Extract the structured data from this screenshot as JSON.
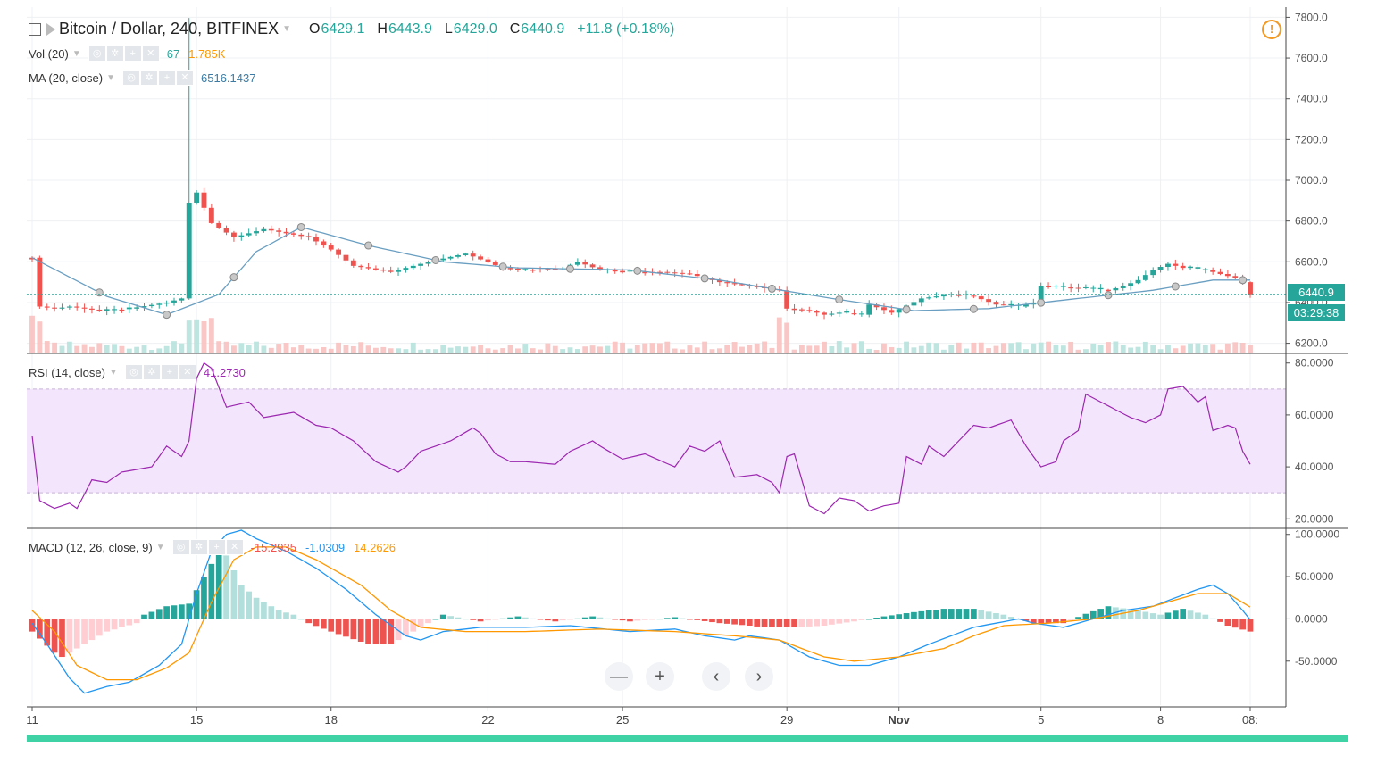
{
  "header": {
    "symbol": "Bitcoin / Dollar, 240, BITFINEX",
    "open_label": "O",
    "open": "6429.1",
    "high_label": "H",
    "high": "6443.9",
    "low_label": "L",
    "low": "6429.0",
    "close_label": "C",
    "close": "6440.9",
    "change": "+11.8 (+0.18%)"
  },
  "indicators": {
    "vol": {
      "label": "Vol (20)",
      "value1": "67",
      "value2": "1.785K"
    },
    "ma": {
      "label": "MA (20, close)",
      "value": "6516.1437"
    },
    "rsi": {
      "label": "RSI (14, close)",
      "value": "41.2730"
    },
    "macd": {
      "label": "MACD (12, 26, close, 9)",
      "hist": "-15.2935",
      "macd": "-1.0309",
      "signal": "14.2626"
    }
  },
  "price_badge": {
    "price": "6440.9",
    "countdown": "03:29:38"
  },
  "nav": {
    "zoom_out": "—",
    "zoom_in": "+",
    "left": "‹",
    "right": "›"
  },
  "colors": {
    "up": "#26a69a",
    "down": "#ef5350",
    "ma": "#6a9fc2",
    "rsi": "#9c27b0",
    "rsi_band": "#f3e5fb",
    "macd": "#2196f3",
    "signal": "#ff9800",
    "hist_up_strong": "#26a69a",
    "hist_up_weak": "#b2dfdb",
    "hist_down_strong": "#ef5350",
    "hist_down_weak": "#ffcdd2"
  },
  "chart_data": [
    {
      "type": "candlestick",
      "title": "Bitcoin / Dollar, 240, BITFINEX",
      "ylim": [
        6150,
        7850
      ],
      "y_ticks": [
        "7800.0",
        "7600.0",
        "7400.0",
        "7200.0",
        "7000.0",
        "6800.0",
        "6600.0",
        "6400.0",
        "6200.0"
      ],
      "x_ticks": [
        "11",
        "15",
        "18",
        "22",
        "25",
        "29",
        "Nov",
        "5",
        "8",
        "08:"
      ],
      "close_anchors": [
        [
          0,
          6620
        ],
        [
          1,
          6380
        ],
        [
          3,
          6370
        ],
        [
          5,
          6380
        ],
        [
          9,
          6360
        ],
        [
          13,
          6370
        ],
        [
          18,
          6400
        ],
        [
          20,
          6420
        ],
        [
          21,
          6890
        ],
        [
          22,
          6940
        ],
        [
          24,
          6790
        ],
        [
          27,
          6720
        ],
        [
          31,
          6760
        ],
        [
          37,
          6720
        ],
        [
          40,
          6660
        ],
        [
          43,
          6580
        ],
        [
          48,
          6550
        ],
        [
          53,
          6600
        ],
        [
          58,
          6640
        ],
        [
          63,
          6570
        ],
        [
          66,
          6560
        ],
        [
          71,
          6570
        ],
        [
          73,
          6600
        ],
        [
          76,
          6560
        ],
        [
          80,
          6550
        ],
        [
          84,
          6550
        ],
        [
          88,
          6540
        ],
        [
          92,
          6500
        ],
        [
          96,
          6480
        ],
        [
          100,
          6460
        ],
        [
          101,
          6370
        ],
        [
          104,
          6360
        ],
        [
          106,
          6340
        ],
        [
          108,
          6350
        ],
        [
          111,
          6340
        ],
        [
          112,
          6390
        ],
        [
          115,
          6350
        ],
        [
          119,
          6420
        ],
        [
          123,
          6440
        ],
        [
          126,
          6430
        ],
        [
          129,
          6390
        ],
        [
          132,
          6380
        ],
        [
          134,
          6400
        ],
        [
          135,
          6480
        ],
        [
          140,
          6470
        ],
        [
          144,
          6460
        ],
        [
          146,
          6480
        ],
        [
          148,
          6510
        ],
        [
          150,
          6560
        ],
        [
          152,
          6590
        ],
        [
          154,
          6570
        ],
        [
          157,
          6560
        ],
        [
          159,
          6540
        ],
        [
          161,
          6520
        ],
        [
          162,
          6500
        ],
        [
          163,
          6440
        ]
      ],
      "ma_anchors": [
        [
          0,
          6620
        ],
        [
          10,
          6430
        ],
        [
          18,
          6340
        ],
        [
          25,
          6440
        ],
        [
          30,
          6650
        ],
        [
          36,
          6770
        ],
        [
          45,
          6680
        ],
        [
          55,
          6600
        ],
        [
          65,
          6570
        ],
        [
          80,
          6560
        ],
        [
          92,
          6510
        ],
        [
          107,
          6420
        ],
        [
          118,
          6360
        ],
        [
          128,
          6370
        ],
        [
          140,
          6420
        ],
        [
          150,
          6460
        ],
        [
          158,
          6510
        ],
        [
          163,
          6510
        ]
      ]
    },
    {
      "type": "line",
      "name": "RSI (14, close)",
      "ylim": [
        17,
        83
      ],
      "y_ticks": [
        "80.0000",
        "60.0000",
        "40.0000",
        "20.0000"
      ],
      "band": [
        30,
        70
      ],
      "anchors": [
        [
          0,
          52
        ],
        [
          1,
          27
        ],
        [
          3,
          24
        ],
        [
          5,
          26
        ],
        [
          6,
          24
        ],
        [
          8,
          35
        ],
        [
          10,
          34
        ],
        [
          12,
          38
        ],
        [
          16,
          40
        ],
        [
          18,
          48
        ],
        [
          20,
          44
        ],
        [
          21,
          50
        ],
        [
          22,
          74
        ],
        [
          23,
          80
        ],
        [
          24,
          78
        ],
        [
          26,
          63
        ],
        [
          29,
          65
        ],
        [
          31,
          59
        ],
        [
          35,
          61
        ],
        [
          38,
          56
        ],
        [
          40,
          55
        ],
        [
          43,
          50
        ],
        [
          46,
          42
        ],
        [
          49,
          38
        ],
        [
          50,
          40
        ],
        [
          52,
          46
        ],
        [
          56,
          50
        ],
        [
          59,
          55
        ],
        [
          60,
          53
        ],
        [
          62,
          45
        ],
        [
          64,
          42
        ],
        [
          66,
          42
        ],
        [
          70,
          41
        ],
        [
          72,
          46
        ],
        [
          75,
          50
        ],
        [
          76,
          48
        ],
        [
          79,
          43
        ],
        [
          82,
          45
        ],
        [
          86,
          40
        ],
        [
          88,
          48
        ],
        [
          90,
          46
        ],
        [
          92,
          50
        ],
        [
          94,
          36
        ],
        [
          97,
          37
        ],
        [
          99,
          34
        ],
        [
          100,
          30
        ],
        [
          101,
          44
        ],
        [
          102,
          45
        ],
        [
          104,
          25
        ],
        [
          106,
          22
        ],
        [
          108,
          28
        ],
        [
          110,
          27
        ],
        [
          112,
          23
        ],
        [
          114,
          25
        ],
        [
          116,
          26
        ],
        [
          117,
          44
        ],
        [
          119,
          41
        ],
        [
          120,
          48
        ],
        [
          122,
          44
        ],
        [
          126,
          56
        ],
        [
          128,
          55
        ],
        [
          131,
          58
        ],
        [
          133,
          48
        ],
        [
          135,
          40
        ],
        [
          137,
          42
        ],
        [
          138,
          50
        ],
        [
          140,
          54
        ],
        [
          141,
          68
        ],
        [
          143,
          65
        ],
        [
          145,
          62
        ],
        [
          147,
          59
        ],
        [
          149,
          57
        ],
        [
          151,
          60
        ],
        [
          152,
          70
        ],
        [
          154,
          71
        ],
        [
          156,
          65
        ],
        [
          157,
          67
        ],
        [
          158,
          54
        ],
        [
          160,
          56
        ],
        [
          161,
          55
        ],
        [
          162,
          46
        ],
        [
          163,
          41
        ]
      ]
    },
    {
      "type": "line+histogram",
      "name": "MACD (12, 26, close, 9)",
      "ylim": [
        -102,
        105
      ],
      "y_ticks": [
        "100.0000",
        "50.0000",
        "0.0000",
        "-50.0000"
      ],
      "macd_anchors": [
        [
          0,
          -5
        ],
        [
          2,
          -30
        ],
        [
          5,
          -70
        ],
        [
          7,
          -88
        ],
        [
          10,
          -80
        ],
        [
          13,
          -75
        ],
        [
          17,
          -55
        ],
        [
          20,
          -30
        ],
        [
          22,
          30
        ],
        [
          24,
          80
        ],
        [
          26,
          100
        ],
        [
          28,
          105
        ],
        [
          30,
          95
        ],
        [
          34,
          80
        ],
        [
          38,
          60
        ],
        [
          42,
          35
        ],
        [
          46,
          5
        ],
        [
          50,
          -20
        ],
        [
          52,
          -25
        ],
        [
          55,
          -15
        ],
        [
          60,
          -10
        ],
        [
          66,
          -10
        ],
        [
          72,
          -8
        ],
        [
          80,
          -15
        ],
        [
          86,
          -12
        ],
        [
          90,
          -20
        ],
        [
          94,
          -25
        ],
        [
          96,
          -20
        ],
        [
          100,
          -25
        ],
        [
          104,
          -45
        ],
        [
          108,
          -55
        ],
        [
          112,
          -55
        ],
        [
          116,
          -45
        ],
        [
          120,
          -30
        ],
        [
          126,
          -10
        ],
        [
          132,
          0
        ],
        [
          134,
          -5
        ],
        [
          138,
          -10
        ],
        [
          142,
          0
        ],
        [
          146,
          10
        ],
        [
          150,
          15
        ],
        [
          153,
          25
        ],
        [
          156,
          35
        ],
        [
          158,
          40
        ],
        [
          160,
          30
        ],
        [
          162,
          10
        ],
        [
          163,
          -1
        ]
      ],
      "signal_anchors": [
        [
          0,
          10
        ],
        [
          3,
          -15
        ],
        [
          6,
          -55
        ],
        [
          10,
          -72
        ],
        [
          14,
          -72
        ],
        [
          18,
          -58
        ],
        [
          21,
          -40
        ],
        [
          24,
          20
        ],
        [
          27,
          70
        ],
        [
          30,
          85
        ],
        [
          34,
          85
        ],
        [
          38,
          70
        ],
        [
          44,
          40
        ],
        [
          48,
          10
        ],
        [
          52,
          -10
        ],
        [
          58,
          -15
        ],
        [
          66,
          -15
        ],
        [
          76,
          -12
        ],
        [
          86,
          -15
        ],
        [
          94,
          -20
        ],
        [
          100,
          -25
        ],
        [
          106,
          -45
        ],
        [
          110,
          -50
        ],
        [
          116,
          -45
        ],
        [
          122,
          -35
        ],
        [
          126,
          -20
        ],
        [
          130,
          -8
        ],
        [
          136,
          -5
        ],
        [
          142,
          0
        ],
        [
          148,
          10
        ],
        [
          152,
          20
        ],
        [
          156,
          30
        ],
        [
          160,
          30
        ],
        [
          163,
          14
        ]
      ],
      "hist_anchors": [
        [
          0,
          -15
        ],
        [
          3,
          -40
        ],
        [
          4,
          -45
        ],
        [
          7,
          -30
        ],
        [
          10,
          -15
        ],
        [
          14,
          -5
        ],
        [
          15,
          5
        ],
        [
          18,
          15
        ],
        [
          21,
          18
        ],
        [
          23,
          50
        ],
        [
          25,
          80
        ],
        [
          26,
          75
        ],
        [
          28,
          40
        ],
        [
          30,
          25
        ],
        [
          33,
          10
        ],
        [
          35,
          5
        ],
        [
          37,
          -5
        ],
        [
          40,
          -15
        ],
        [
          45,
          -30
        ],
        [
          48,
          -30
        ],
        [
          52,
          -10
        ],
        [
          55,
          5
        ],
        [
          60,
          -3
        ],
        [
          65,
          3
        ],
        [
          70,
          -3
        ],
        [
          75,
          3
        ],
        [
          80,
          -3
        ],
        [
          86,
          2
        ],
        [
          92,
          -5
        ],
        [
          96,
          -8
        ],
        [
          98,
          -10
        ],
        [
          102,
          -10
        ],
        [
          106,
          -8
        ],
        [
          110,
          -3
        ],
        [
          114,
          3
        ],
        [
          118,
          8
        ],
        [
          122,
          12
        ],
        [
          126,
          12
        ],
        [
          130,
          5
        ],
        [
          134,
          -5
        ],
        [
          138,
          -5
        ],
        [
          141,
          6
        ],
        [
          144,
          15
        ],
        [
          148,
          10
        ],
        [
          151,
          5
        ],
        [
          154,
          12
        ],
        [
          157,
          5
        ],
        [
          160,
          -8
        ],
        [
          163,
          -15
        ]
      ]
    }
  ]
}
